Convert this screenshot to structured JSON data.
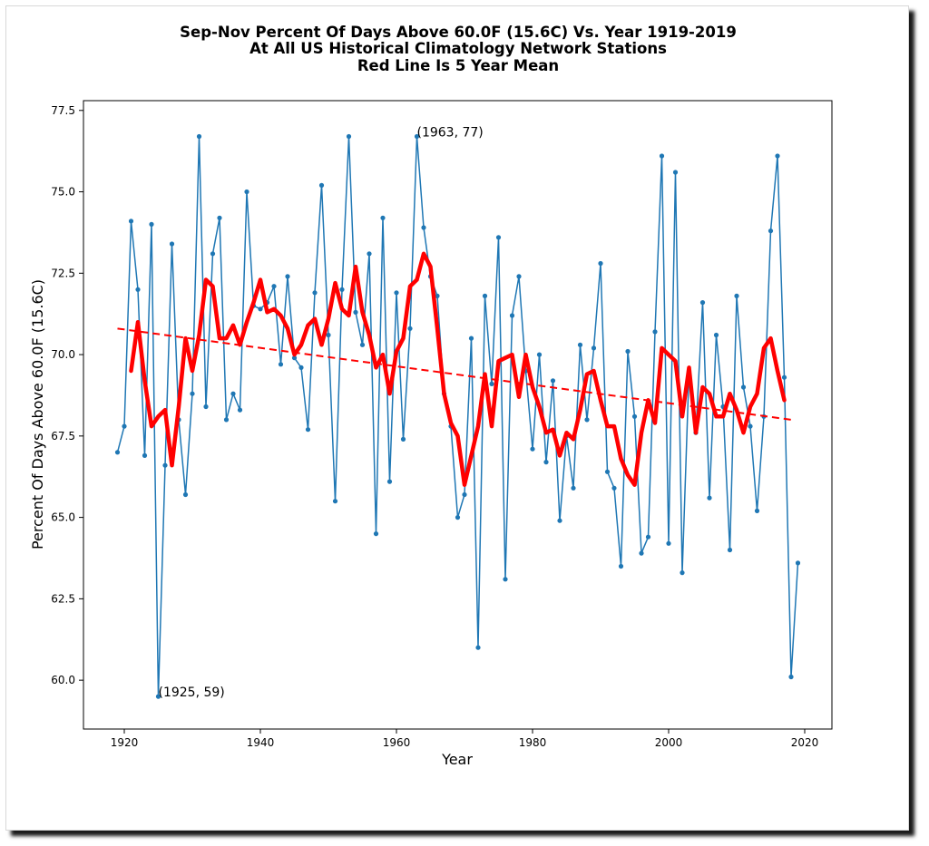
{
  "chart_data": {
    "type": "line",
    "title_lines": [
      "Sep-Nov Percent Of Days Above 60.0F (15.6C) Vs. Year 1919-2019",
      "At All US Historical Climatology Network Stations",
      "Red Line Is 5 Year Mean"
    ],
    "xlabel": "Year",
    "ylabel": "Percent Of Days Above 60.0F (15.6C)",
    "xlim": [
      1914,
      2024
    ],
    "ylim": [
      58.5,
      77.8
    ],
    "x_ticks": [
      1920,
      1940,
      1960,
      1980,
      2000,
      2020
    ],
    "y_ticks": [
      60.0,
      62.5,
      65.0,
      67.5,
      70.0,
      72.5,
      75.0,
      77.5
    ],
    "x_tick_labels": [
      "1920",
      "1940",
      "1960",
      "1980",
      "2000",
      "2020"
    ],
    "y_tick_labels": [
      "60.0",
      "62.5",
      "65.0",
      "67.5",
      "70.0",
      "72.5",
      "75.0",
      "77.5"
    ],
    "grid": false,
    "colors": {
      "series": "#1f77b4",
      "mean": "#ff0000",
      "trend": "#ff0000"
    },
    "series": [
      {
        "x": [
          1919,
          1920,
          1921,
          1922,
          1923,
          1924,
          1925,
          1926,
          1927,
          1928,
          1929,
          1930,
          1931,
          1932,
          1933,
          1934,
          1935,
          1936,
          1937,
          1938,
          1939,
          1940,
          1941,
          1942,
          1943,
          1944,
          1945,
          1946,
          1947,
          1948,
          1949,
          1950,
          1951,
          1952,
          1953,
          1954,
          1955,
          1956,
          1957,
          1958,
          1959,
          1960,
          1961,
          1962,
          1963,
          1964,
          1965,
          1966,
          1967,
          1968,
          1969,
          1970,
          1971,
          1972,
          1973,
          1974,
          1975,
          1976,
          1977,
          1978,
          1979,
          1980,
          1981,
          1982,
          1983,
          1984,
          1985,
          1986,
          1987,
          1988,
          1989,
          1990,
          1991,
          1992,
          1993,
          1994,
          1995,
          1996,
          1997,
          1998,
          1999,
          2000,
          2001,
          2002,
          2003,
          2004,
          2005,
          2006,
          2007,
          2008,
          2009,
          2010,
          2011,
          2012,
          2013,
          2014,
          2015,
          2016,
          2017,
          2018,
          2019
        ],
        "values": [
          67.0,
          67.8,
          74.1,
          72.0,
          66.9,
          74.0,
          59.5,
          66.6,
          73.4,
          68.0,
          65.7,
          68.8,
          76.7,
          68.4,
          73.1,
          74.2,
          68.0,
          68.8,
          68.3,
          75.0,
          71.5,
          71.4,
          71.6,
          72.1,
          69.7,
          72.4,
          69.9,
          69.6,
          67.7,
          71.9,
          75.2,
          70.6,
          65.5,
          72.0,
          76.7,
          71.3,
          70.3,
          73.1,
          64.5,
          74.2,
          66.1,
          71.9,
          67.4,
          70.8,
          76.7,
          73.9,
          72.4,
          71.8,
          68.8,
          67.8,
          65.0,
          65.7,
          70.5,
          61.0,
          71.8,
          69.1,
          73.6,
          63.1,
          71.2,
          72.4,
          69.5,
          67.1,
          70.0,
          66.7,
          69.2,
          64.9,
          67.5,
          65.9,
          70.3,
          68.0,
          70.2,
          72.8,
          66.4,
          65.9,
          63.5,
          70.1,
          68.1,
          63.9,
          64.4,
          70.7,
          76.1,
          64.2,
          75.6,
          63.3,
          69.5,
          67.6,
          71.6,
          65.6,
          70.6,
          68.4,
          64.0,
          71.8,
          69.0,
          67.8,
          65.2,
          68.1,
          73.8,
          76.1,
          69.3,
          60.1,
          63.6
        ]
      },
      {
        "name": "5 Year Mean",
        "x": [
          1921,
          1922,
          1923,
          1924,
          1925,
          1926,
          1927,
          1928,
          1929,
          1930,
          1931,
          1932,
          1933,
          1934,
          1935,
          1936,
          1937,
          1938,
          1939,
          1940,
          1941,
          1942,
          1943,
          1944,
          1945,
          1946,
          1947,
          1948,
          1949,
          1950,
          1951,
          1952,
          1953,
          1954,
          1955,
          1956,
          1957,
          1958,
          1959,
          1960,
          1961,
          1962,
          1963,
          1964,
          1965,
          1966,
          1967,
          1968,
          1969,
          1970,
          1971,
          1972,
          1973,
          1974,
          1975,
          1976,
          1977,
          1978,
          1979,
          1980,
          1981,
          1982,
          1983,
          1984,
          1985,
          1986,
          1987,
          1988,
          1989,
          1990,
          1991,
          1992,
          1993,
          1994,
          1995,
          1996,
          1997,
          1998,
          1999,
          2000,
          2001,
          2002,
          2003,
          2004,
          2005,
          2006,
          2007,
          2008,
          2009,
          2010,
          2011,
          2012,
          2013,
          2014,
          2015,
          2016,
          2017
        ],
        "values": [
          69.5,
          71.0,
          69.2,
          67.8,
          68.1,
          68.3,
          66.6,
          68.4,
          70.5,
          69.5,
          70.6,
          72.3,
          72.1,
          70.5,
          70.5,
          70.9,
          70.3,
          71.0,
          71.6,
          72.3,
          71.3,
          71.4,
          71.2,
          70.8,
          70.0,
          70.3,
          70.9,
          71.1,
          70.3,
          71.1,
          72.2,
          71.4,
          71.2,
          72.7,
          71.3,
          70.6,
          69.6,
          70.0,
          68.8,
          70.1,
          70.5,
          72.1,
          72.3,
          73.1,
          72.7,
          70.8,
          68.8,
          67.9,
          67.5,
          66.0,
          66.9,
          67.8,
          69.4,
          67.8,
          69.8,
          69.9,
          70.0,
          68.7,
          70.0,
          69.0,
          68.4,
          67.6,
          67.7,
          66.9,
          67.6,
          67.4,
          68.3,
          69.4,
          69.5,
          68.6,
          67.8,
          67.8,
          66.8,
          66.3,
          66.0,
          67.6,
          68.6,
          67.9,
          70.2,
          70.0,
          69.8,
          68.1,
          69.6,
          67.6,
          69.0,
          68.8,
          68.1,
          68.1,
          68.8,
          68.3,
          67.6,
          68.4,
          68.8,
          70.2,
          70.5,
          69.5,
          68.6
        ]
      }
    ],
    "trend": {
      "x": [
        1919,
        2018
      ],
      "values": [
        70.8,
        68.0
      ]
    },
    "annotations": [
      {
        "text": "(1963, 77)",
        "x": 1963,
        "y": 76.7
      },
      {
        "text": "(1925, 59)",
        "x": 1925,
        "y": 59.5
      }
    ]
  }
}
